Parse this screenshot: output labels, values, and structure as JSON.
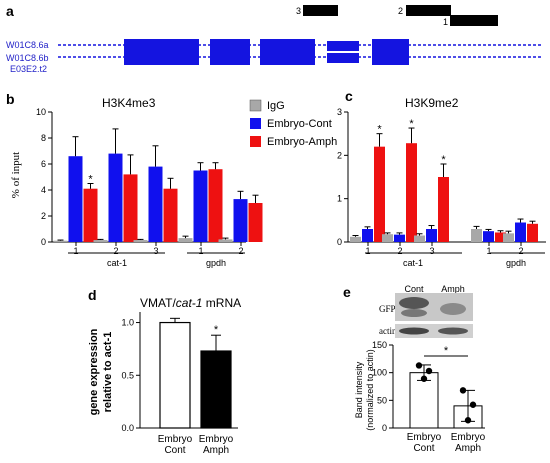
{
  "colors": {
    "igg": "#a8a8a8",
    "cont": "#1010ee",
    "amph": "#ee1111",
    "gene": "#1414e0",
    "gene_label": "#2323c8",
    "dark": "#000000"
  },
  "panel_a": {
    "letter": "a",
    "tracks": [
      "W01C8.6a",
      "W01C8.6b",
      "E03E2.t2"
    ],
    "region_labels": [
      "3",
      "2",
      "1"
    ]
  },
  "panel_b": {
    "letter": "b",
    "title": "H3K4me3",
    "ylabel": "% of input",
    "group_labels": [
      "cat-1",
      "gpdh"
    ]
  },
  "panel_c": {
    "letter": "c",
    "title": "H3K9me2",
    "group_labels": [
      "cat-1",
      "gpdh"
    ]
  },
  "panel_d": {
    "letter": "d",
    "title_prefix": "VMAT/",
    "title_gene": "cat-1",
    "title_suffix": " mRNA",
    "ylabel_line1": "gene expression",
    "ylabel_line2": "relative to act-1"
  },
  "panel_e": {
    "letter": "e",
    "blot_headers": [
      "Cont",
      "Amph"
    ],
    "blot_rows": [
      "GFP",
      "actin"
    ],
    "ylabel_line1": "Band intensity",
    "ylabel_line2": "(normalized to actin)"
  },
  "legend": [
    "IgG",
    "Embryo-Cont",
    "Embryo-Amph"
  ],
  "chart_data": [
    {
      "panel": "b",
      "type": "bar",
      "title": "H3K4me3",
      "ylabel": "% of input",
      "ylim": [
        0,
        10
      ],
      "yticks": [
        0,
        2,
        4,
        6,
        8,
        10
      ],
      "categories": [
        "1",
        "2",
        "3",
        "1",
        "2"
      ],
      "groups": [
        {
          "label": "cat-1",
          "categories": [
            "1",
            "2",
            "3"
          ]
        },
        {
          "label": "gpdh",
          "categories": [
            "1",
            "2"
          ]
        }
      ],
      "series": [
        {
          "name": "IgG",
          "values": [
            0.1,
            0.15,
            0.15,
            0.3,
            0.2
          ],
          "errors": [
            0.05,
            0.05,
            0.05,
            0.15,
            0.1
          ]
        },
        {
          "name": "Embryo-Cont",
          "values": [
            6.6,
            6.8,
            5.8,
            5.5,
            3.3
          ],
          "errors": [
            1.5,
            1.9,
            1.6,
            0.6,
            0.6
          ]
        },
        {
          "name": "Embryo-Amph",
          "values": [
            4.1,
            5.2,
            4.1,
            5.6,
            3.0
          ],
          "errors": [
            0.4,
            1.5,
            0.8,
            0.5,
            0.6
          ]
        }
      ],
      "annotations": [
        {
          "category_index": 0,
          "series": "Embryo-Amph",
          "text": "*"
        }
      ]
    },
    {
      "panel": "c",
      "type": "bar",
      "title": "H3K9me2",
      "ylim": [
        0,
        3
      ],
      "yticks": [
        0,
        1,
        2,
        3
      ],
      "categories": [
        "1",
        "2",
        "3",
        "1",
        "2"
      ],
      "groups": [
        {
          "label": "cat-1",
          "categories": [
            "1",
            "2",
            "3"
          ]
        },
        {
          "label": "gpdh",
          "categories": [
            "1",
            "2"
          ]
        }
      ],
      "series": [
        {
          "name": "IgG",
          "values": [
            0.12,
            0.18,
            0.15,
            0.3,
            0.2
          ],
          "errors": [
            0.03,
            0.03,
            0.04,
            0.06,
            0.05
          ]
        },
        {
          "name": "Embryo-Cont",
          "values": [
            0.3,
            0.17,
            0.3,
            0.25,
            0.45
          ],
          "errors": [
            0.05,
            0.04,
            0.08,
            0.04,
            0.08
          ]
        },
        {
          "name": "Embryo-Amph",
          "values": [
            2.2,
            2.28,
            1.5,
            0.22,
            0.42
          ],
          "errors": [
            0.3,
            0.35,
            0.3,
            0.04,
            0.06
          ]
        }
      ],
      "annotations": [
        {
          "category_index": 0,
          "series": "Embryo-Amph",
          "text": "*"
        },
        {
          "category_index": 1,
          "series": "Embryo-Amph",
          "text": "*"
        },
        {
          "category_index": 2,
          "series": "Embryo-Amph",
          "text": "*"
        }
      ]
    },
    {
      "panel": "d",
      "type": "bar",
      "title": "VMAT/cat-1 mRNA",
      "ylabel": "gene expression relative to act-1",
      "ylim": [
        0,
        1.1
      ],
      "yticks": [
        "0.0",
        "0.5",
        "1.0"
      ],
      "categories": [
        "Embryo Cont",
        "Embryo Amph"
      ],
      "category_lines": [
        [
          "Embryo",
          "Cont"
        ],
        [
          "Embryo",
          "Amph"
        ]
      ],
      "values": [
        1.0,
        0.73
      ],
      "errors": [
        0.04,
        0.15
      ],
      "fills": [
        "#ffffff",
        "#000000"
      ],
      "annotations": [
        {
          "category_index": 1,
          "text": "*"
        }
      ]
    },
    {
      "panel": "e",
      "type": "bar",
      "ylabel": "Band intensity (normalized to actin)",
      "ylim": [
        0,
        150
      ],
      "yticks": [
        0,
        50,
        100,
        150
      ],
      "categories": [
        "Embryo Cont",
        "Embryo Amph"
      ],
      "category_lines": [
        [
          "Embryo",
          "Cont"
        ],
        [
          "Embryo",
          "Amph"
        ]
      ],
      "values": [
        100,
        40
      ],
      "errors": [
        14,
        28
      ],
      "points": [
        [
          113,
          103,
          89
        ],
        [
          68,
          42,
          14
        ]
      ],
      "significance": {
        "between": [
          0,
          1
        ],
        "text": "*"
      }
    }
  ]
}
